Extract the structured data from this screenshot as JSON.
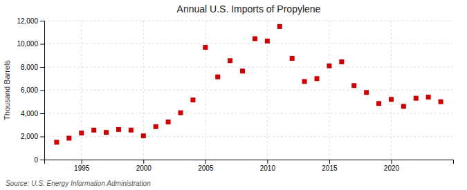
{
  "chart_data": {
    "type": "scatter",
    "title": "Annual U.S. Imports of Propylene",
    "y_label": "Thousand Barrels",
    "source": "Source: U.S. Energy Information Administration",
    "color": "#cc0000",
    "marker": "square",
    "grid": true,
    "xlim": [
      1992,
      2025
    ],
    "ylim": [
      0,
      12000
    ],
    "xticks": [
      1995,
      2000,
      2005,
      2010,
      2015,
      2020
    ],
    "yticks": [
      0,
      {
        "value": 2000,
        "label": "2,000"
      },
      {
        "value": 4000,
        "label": "4,000"
      },
      {
        "value": 6000,
        "label": "6,000"
      },
      {
        "value": 8000,
        "label": "8,000"
      },
      {
        "value": 10000,
        "label": "10,000"
      },
      {
        "value": 12000,
        "label": "12,000"
      }
    ],
    "x": [
      1993,
      1994,
      1995,
      1996,
      1997,
      1998,
      1999,
      2000,
      2001,
      2002,
      2003,
      2004,
      2005,
      2006,
      2007,
      2008,
      2009,
      2010,
      2011,
      2012,
      2013,
      2014,
      2015,
      2016,
      2017,
      2018,
      2019,
      2020,
      2021,
      2022,
      2023,
      2024
    ],
    "values": [
      1500,
      1850,
      2300,
      2550,
      2350,
      2600,
      2550,
      2050,
      2850,
      3250,
      4050,
      5150,
      9700,
      7150,
      8550,
      7650,
      10450,
      10250,
      11500,
      8750,
      6750,
      7000,
      8100,
      8450,
      6400,
      5800,
      4850,
      5200,
      4600,
      5300,
      5400,
      5000
    ]
  }
}
